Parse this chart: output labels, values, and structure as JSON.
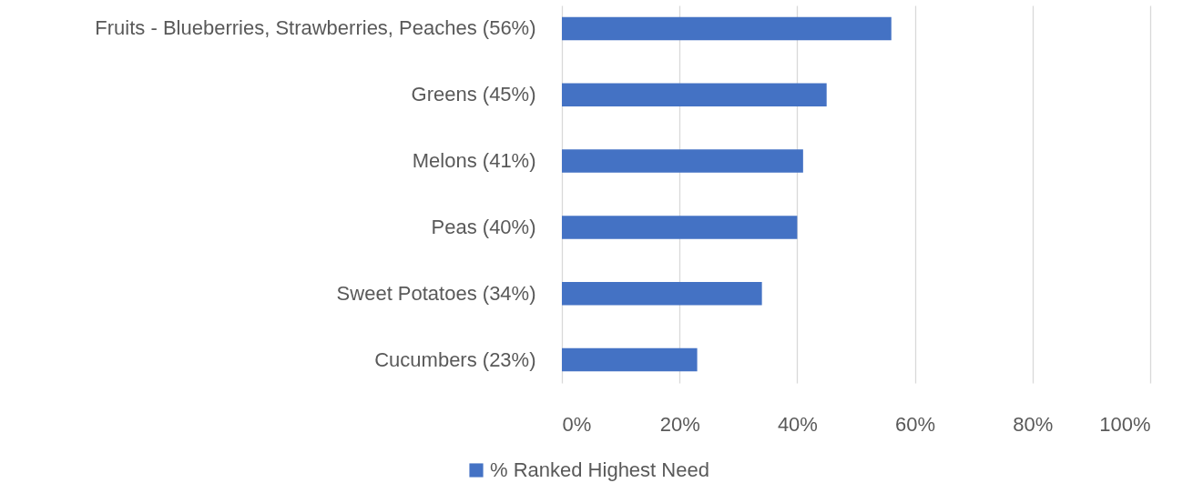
{
  "chart_data": {
    "type": "bar",
    "orientation": "horizontal",
    "categories": [
      "Fruits - Blueberries, Strawberries, Peaches (56%)",
      "Greens (45%)",
      "Melons (41%)",
      "Peas (40%)",
      "Sweet Potatoes (34%)",
      "Cucumbers (23%)"
    ],
    "series": [
      {
        "name": "% Ranked Highest Need",
        "color": "#4472c4",
        "values": [
          56,
          45,
          41,
          40,
          34,
          23
        ]
      }
    ],
    "xlim": [
      0,
      100
    ],
    "xticks": [
      {
        "value": 0,
        "label": "0%"
      },
      {
        "value": 20,
        "label": "20%"
      },
      {
        "value": 40,
        "label": "40%"
      },
      {
        "value": 60,
        "label": "60%"
      },
      {
        "value": 80,
        "label": "80%"
      },
      {
        "value": 100,
        "label": "100%"
      }
    ],
    "grid": "x",
    "legend": "bottom"
  }
}
